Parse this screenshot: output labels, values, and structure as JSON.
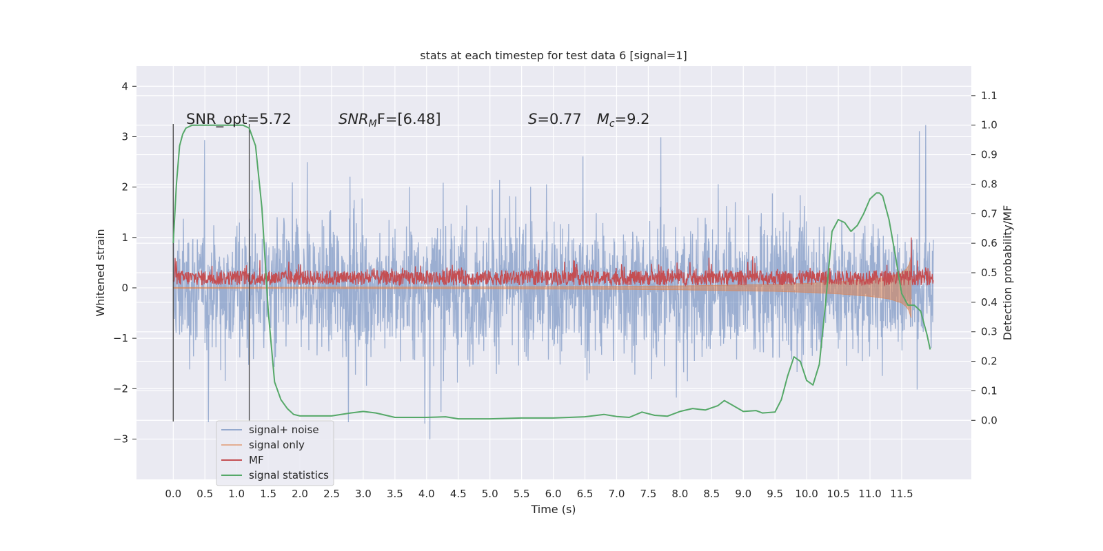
{
  "chart_data": {
    "type": "line",
    "title": "stats at each timestep for test data 6 [signal=1]",
    "xlabel": "Time (s)",
    "ylabel": "Whitened strain",
    "y2label": "Detection probability/MF",
    "xlim": [
      -0.58,
      12.6
    ],
    "ylim": [
      -3.8,
      4.4
    ],
    "y2lim": [
      -0.2,
      1.2
    ],
    "x_ticks": [
      0.0,
      0.5,
      1.0,
      1.5,
      2.0,
      2.5,
      3.0,
      3.5,
      4.0,
      4.5,
      5.0,
      5.5,
      6.0,
      6.5,
      7.0,
      7.5,
      8.0,
      8.5,
      9.0,
      9.5,
      10.0,
      10.5,
      11.0,
      11.5
    ],
    "x_tick_labels": [
      "0.0",
      "0.5",
      "1.0",
      "1.5",
      "2.0",
      "2.5",
      "3.0",
      "3.5",
      "4.0",
      "4.5",
      "5.0",
      "5.5",
      "6.0",
      "6.5",
      "7.0",
      "7.5",
      "8.0",
      "8.5",
      "9.0",
      "9.5",
      "10.0",
      "10.5",
      "11.0",
      "11.5"
    ],
    "y_ticks": [
      -3,
      -2,
      -1,
      0,
      1,
      2,
      3,
      4
    ],
    "y_tick_labels": [
      "−3",
      "−2",
      "−1",
      "0",
      "1",
      "2",
      "3",
      "4"
    ],
    "y2_ticks": [
      0.0,
      0.1,
      0.2,
      0.3,
      0.4,
      0.5,
      0.6,
      0.7,
      0.8,
      0.9,
      1.0,
      1.1
    ],
    "y2_tick_labels": [
      "0.0",
      "0.1",
      "0.2",
      "0.3",
      "0.4",
      "0.5",
      "0.6",
      "0.7",
      "0.8",
      "0.9",
      "1.0",
      "1.1"
    ],
    "grid": true,
    "legend_position": "lower-left",
    "series": [
      {
        "name": "signal+ noise",
        "color": "#4c72b0",
        "axis": "left",
        "kind": "noise",
        "t_range": [
          0.0,
          12.0
        ],
        "envelope": [
          -3.4,
          3.4
        ]
      },
      {
        "name": "signal only",
        "color": "#dd8452",
        "axis": "left",
        "kind": "chirp",
        "t": [
          0.0,
          5.0,
          7.0,
          8.0,
          9.0,
          9.5,
          10.0,
          10.5,
          11.0,
          11.3,
          11.5,
          11.6,
          11.65
        ],
        "amplitude": [
          0.01,
          0.02,
          0.03,
          0.04,
          0.06,
          0.07,
          0.09,
          0.12,
          0.17,
          0.22,
          0.3,
          0.4,
          0.6
        ]
      },
      {
        "name": "MF",
        "color": "#c44e52",
        "axis": "left",
        "kind": "mf",
        "t_range": [
          0.0,
          12.0
        ],
        "baseline": 0.2,
        "spread": [
          0.0,
          0.65
        ],
        "spike": {
          "t": 11.65,
          "value": 1.0
        }
      },
      {
        "name": "signal statistics",
        "color": "#55a868",
        "axis": "right",
        "kind": "line",
        "x": [
          0.0,
          0.05,
          0.1,
          0.15,
          0.2,
          0.3,
          0.5,
          0.8,
          1.0,
          1.1,
          1.2,
          1.3,
          1.4,
          1.5,
          1.6,
          1.7,
          1.8,
          1.9,
          2.0,
          2.2,
          2.5,
          2.8,
          3.0,
          3.2,
          3.5,
          4.0,
          4.3,
          4.5,
          5.0,
          5.5,
          6.0,
          6.5,
          6.8,
          7.0,
          7.2,
          7.4,
          7.6,
          7.8,
          8.0,
          8.2,
          8.4,
          8.6,
          8.7,
          8.8,
          9.0,
          9.2,
          9.3,
          9.5,
          9.6,
          9.7,
          9.8,
          9.9,
          10.0,
          10.1,
          10.2,
          10.3,
          10.4,
          10.45,
          10.5,
          10.6,
          10.7,
          10.8,
          10.9,
          11.0,
          11.1,
          11.15,
          11.2,
          11.3,
          11.4,
          11.5,
          11.6,
          11.7,
          11.8,
          11.9,
          11.95
        ],
        "y": [
          0.6,
          0.8,
          0.93,
          0.97,
          0.99,
          1.0,
          1.0,
          1.0,
          1.0,
          1.0,
          0.99,
          0.93,
          0.72,
          0.37,
          0.13,
          0.07,
          0.04,
          0.02,
          0.015,
          0.015,
          0.015,
          0.025,
          0.03,
          0.025,
          0.01,
          0.01,
          0.012,
          0.005,
          0.005,
          0.008,
          0.008,
          0.012,
          0.02,
          0.013,
          0.01,
          0.028,
          0.017,
          0.014,
          0.03,
          0.04,
          0.035,
          0.05,
          0.067,
          0.055,
          0.03,
          0.033,
          0.025,
          0.028,
          0.07,
          0.15,
          0.215,
          0.2,
          0.135,
          0.12,
          0.19,
          0.4,
          0.64,
          0.66,
          0.68,
          0.67,
          0.64,
          0.66,
          0.7,
          0.75,
          0.77,
          0.77,
          0.76,
          0.68,
          0.56,
          0.43,
          0.39,
          0.39,
          0.37,
          0.29,
          0.24
        ]
      }
    ],
    "vertical_lines": [
      0.0,
      1.2
    ],
    "annotations": [
      "SNR_opt=5.72",
      "SNR",
      "M",
      "F=[6.48]",
      "S",
      "=0.77",
      "M",
      "c",
      "=9.2"
    ]
  }
}
